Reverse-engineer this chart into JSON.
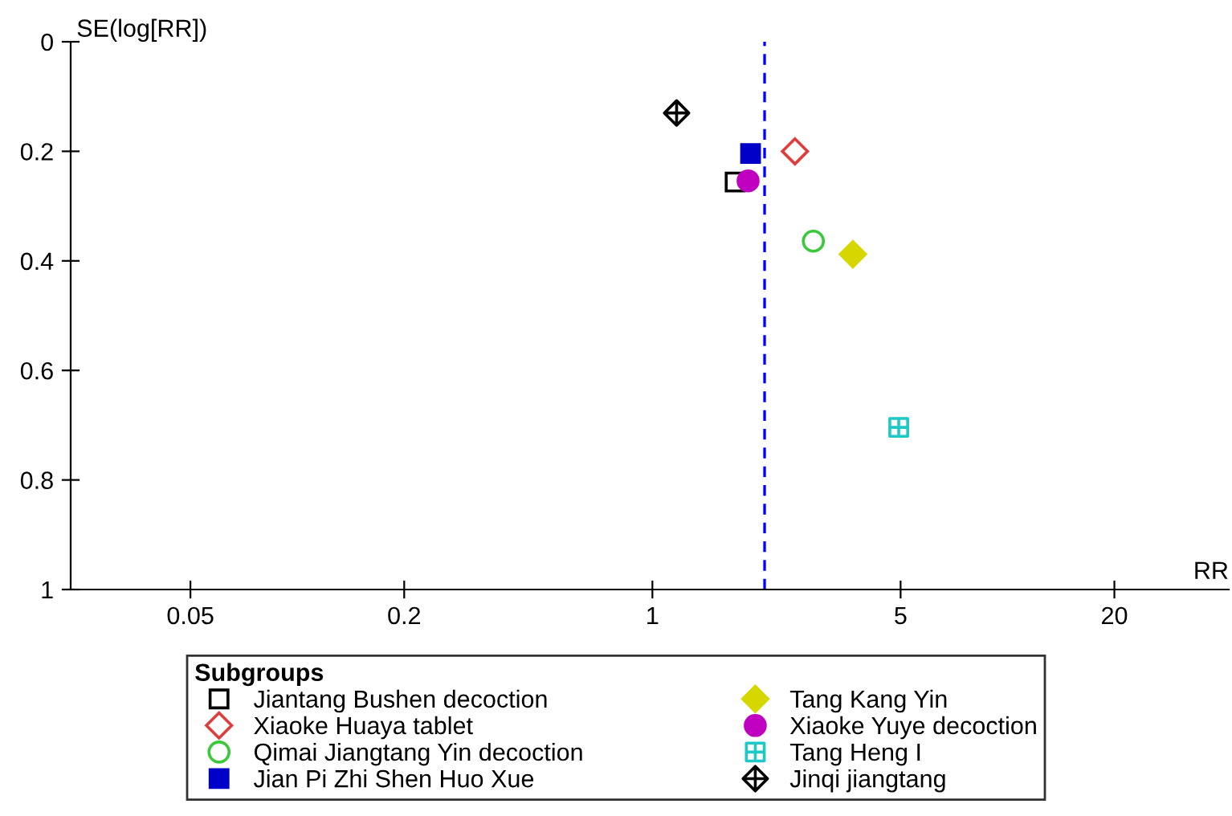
{
  "chart_data": {
    "type": "scatter",
    "xlabel": "RR",
    "ylabel": "SE(log[RR])",
    "legend_title": "Subgroups",
    "log": "x",
    "xlim": [
      0.023,
      42
    ],
    "xticks": [
      0.05,
      0.2,
      1,
      5,
      20
    ],
    "ylim": [
      1,
      0
    ],
    "yticks": [
      0,
      0.2,
      0.4,
      0.6,
      0.8,
      1
    ],
    "grid": false,
    "legend": "bottom",
    "ref_lines": [
      {
        "axis": "x",
        "value": 2.07,
        "color": "#0000ff",
        "line_style": "dashed"
      }
    ],
    "series": [
      {
        "name": "Jiantang Bushen decoction",
        "color": "#000000",
        "marker": "square",
        "x": [
          1.71
        ],
        "values": [
          0.256
        ]
      },
      {
        "name": "Xiaoke Huaya tablet",
        "color": "#e03c3c",
        "marker": "diamond",
        "x": [
          2.52
        ],
        "values": [
          0.2
        ]
      },
      {
        "name": "Qimai Jiangtang Yin decoction",
        "color": "#3cc83c",
        "marker": "circle",
        "x": [
          2.84
        ],
        "values": [
          0.364
        ]
      },
      {
        "name": "Jian Pi Zhi Shen Huo Xue",
        "color": "#0000c8",
        "marker": "square",
        "x": [
          1.89
        ],
        "values": [
          0.204
        ]
      },
      {
        "name": "Tang Kang Yin",
        "color": "#d7d700",
        "marker": "diamond",
        "x": [
          3.67
        ],
        "values": [
          0.388
        ]
      },
      {
        "name": "Xiaoke Yuye decoction",
        "color": "#c000c0",
        "marker": "circle",
        "x": [
          1.86
        ],
        "values": [
          0.254
        ]
      },
      {
        "name": "Tang Heng I",
        "color": "#1ec8c8",
        "marker": "cross",
        "x": [
          4.94
        ],
        "values": [
          0.704
        ]
      },
      {
        "name": "Jinqi jiangtang",
        "color": "#000000",
        "marker": "cross",
        "x": [
          1.17
        ],
        "values": [
          0.13
        ]
      }
    ]
  }
}
